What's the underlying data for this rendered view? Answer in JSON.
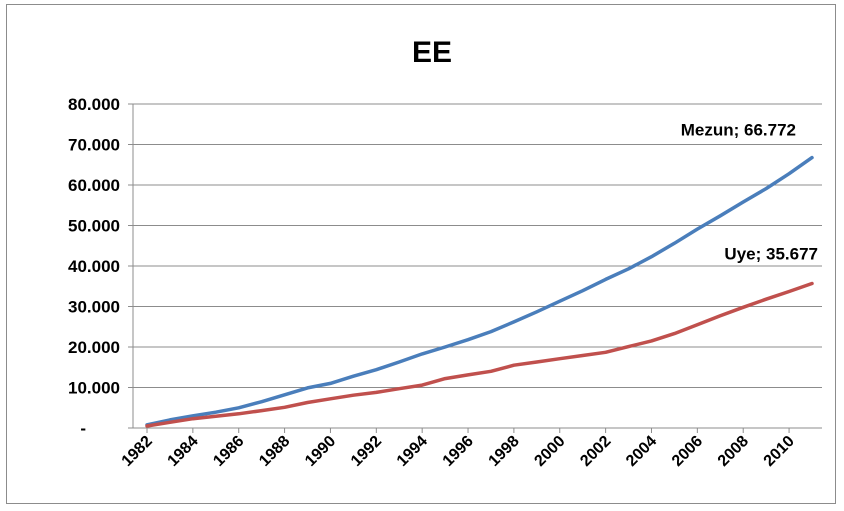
{
  "chart_data": {
    "type": "line",
    "title": "EE",
    "xlabel": "",
    "ylabel": "",
    "ylim": [
      0,
      80000
    ],
    "xlim": [
      1982,
      2011
    ],
    "grid": true,
    "legend": "none",
    "y_ticks": [
      {
        "value": 0,
        "label": "-"
      },
      {
        "value": 10000,
        "label": "10.000"
      },
      {
        "value": 20000,
        "label": "20.000"
      },
      {
        "value": 30000,
        "label": "30.000"
      },
      {
        "value": 40000,
        "label": "40.000"
      },
      {
        "value": 50000,
        "label": "50.000"
      },
      {
        "value": 60000,
        "label": "60.000"
      },
      {
        "value": 70000,
        "label": "70.000"
      },
      {
        "value": 80000,
        "label": "80.000"
      }
    ],
    "x_ticks": [
      "1982",
      "1984",
      "1986",
      "1988",
      "1990",
      "1992",
      "1994",
      "1996",
      "1998",
      "2000",
      "2002",
      "2004",
      "2006",
      "2008",
      "2010"
    ],
    "x": [
      1982,
      1983,
      1984,
      1985,
      1986,
      1987,
      1988,
      1989,
      1990,
      1991,
      1992,
      1993,
      1994,
      1995,
      1996,
      1997,
      1998,
      1999,
      2000,
      2001,
      2002,
      2003,
      2004,
      2005,
      2006,
      2007,
      2008,
      2009,
      2010,
      2011
    ],
    "series": [
      {
        "name": "Mezun",
        "color": "#4a7ebb",
        "values": [
          800,
          2000,
          3000,
          3900,
          5000,
          6500,
          8200,
          9900,
          11000,
          12800,
          14400,
          16300,
          18300,
          20000,
          21800,
          23800,
          26200,
          28700,
          31300,
          33900,
          36700,
          39300,
          42300,
          45600,
          49100,
          52400,
          55800,
          59100,
          62800,
          66772
        ],
        "data_label": "Mezun;  66.772"
      },
      {
        "name": "Uye",
        "color": "#c0504d",
        "values": [
          500,
          1400,
          2300,
          2900,
          3500,
          4300,
          5100,
          6300,
          7200,
          8100,
          8800,
          9700,
          10600,
          12200,
          13100,
          14000,
          15500,
          16300,
          17100,
          17900,
          18700,
          20100,
          21500,
          23300,
          25500,
          27700,
          29800,
          31800,
          33700,
          35677
        ],
        "data_label": "Uye;  35.677"
      }
    ]
  }
}
